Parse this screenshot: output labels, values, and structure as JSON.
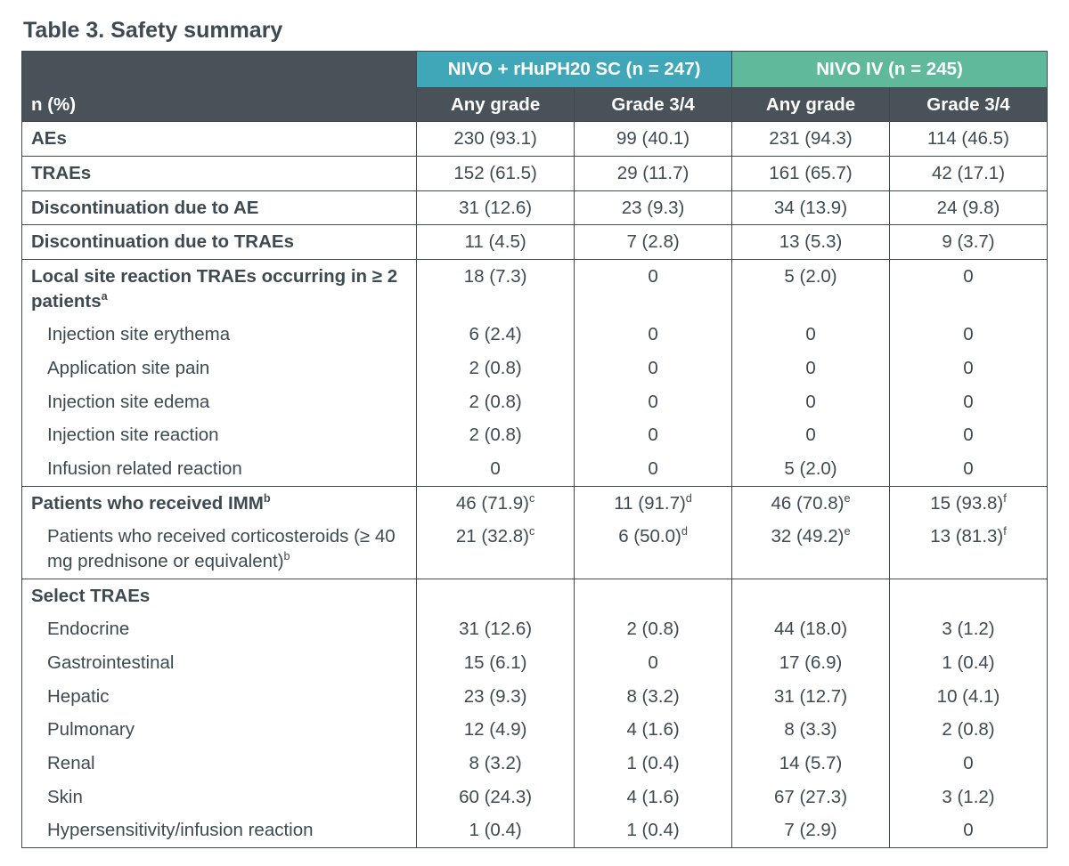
{
  "title": "Table 3. Safety summary",
  "corner_label": "n (%)",
  "colors": {
    "group1_bg": "#3fa7b8",
    "group2_bg": "#5fb99a",
    "header_bg": "#4a5259",
    "header_fg": "#ffffff",
    "border": "#3f4a52",
    "text": "#3d4a52"
  },
  "groups": [
    {
      "label": "NIVO + rHuPH20 SC (n = 247)",
      "bg": "#3fa7b8"
    },
    {
      "label": "NIVO IV (n = 245)",
      "bg": "#5fb99a"
    }
  ],
  "sub_headers": [
    "Any grade",
    "Grade 3/4",
    "Any grade",
    "Grade 3/4"
  ],
  "rows": [
    {
      "label": "AEs",
      "vals": [
        "230 (93.1)",
        "99 (40.1)",
        "231 (94.3)",
        "114 (46.5)"
      ]
    },
    {
      "label": "TRAEs",
      "vals": [
        "152 (61.5)",
        "29 (11.7)",
        "161 (65.7)",
        "42 (17.1)"
      ]
    },
    {
      "label": "Discontinuation due to AE",
      "vals": [
        "31 (12.6)",
        "23 (9.3)",
        "34 (13.9)",
        "24 (9.8)"
      ]
    },
    {
      "label": "Discontinuation due to TRAEs",
      "vals": [
        "11 (4.5)",
        "7 (2.8)",
        "13 (5.3)",
        "9 (3.7)"
      ]
    },
    {
      "label": "Local site reaction TRAEs occurring in ≥ 2 patients",
      "sup": "a",
      "vals": [
        "18 (7.3)",
        "0",
        "5 (2.0)",
        "0"
      ],
      "border": "no-bottom"
    },
    {
      "label": "Injection site erythema",
      "indent": true,
      "vals": [
        "6 (2.4)",
        "0",
        "0",
        "0"
      ],
      "border": "no-tb"
    },
    {
      "label": "Application site pain",
      "indent": true,
      "vals": [
        "2 (0.8)",
        "0",
        "0",
        "0"
      ],
      "border": "no-tb"
    },
    {
      "label": "Injection site edema",
      "indent": true,
      "vals": [
        "2 (0.8)",
        "0",
        "0",
        "0"
      ],
      "border": "no-tb"
    },
    {
      "label": "Injection site reaction",
      "indent": true,
      "vals": [
        "2 (0.8)",
        "0",
        "0",
        "0"
      ],
      "border": "no-tb"
    },
    {
      "label": "Infusion related reaction",
      "indent": true,
      "vals": [
        "0",
        "0",
        "5 (2.0)",
        "0"
      ],
      "border": "no-top"
    },
    {
      "label": "Patients who received IMM",
      "sup": "b",
      "vals": [
        "46 (71.9)",
        "11 (91.7)",
        "46 (70.8)",
        "15 (93.8)"
      ],
      "val_sups": [
        "c",
        "d",
        "e",
        "f"
      ],
      "border": "no-bottom"
    },
    {
      "label": "Patients who received corticosteroids (≥ 40 mg prednisone or equivalent)",
      "sup": "b",
      "indent": true,
      "vals": [
        "21 (32.8)",
        "6 (50.0)",
        "32 (49.2)",
        "13 (81.3)"
      ],
      "val_sups": [
        "c",
        "d",
        "e",
        "f"
      ],
      "border": "no-top"
    },
    {
      "label": "Select TRAEs",
      "vals": [
        "",
        "",
        "",
        ""
      ],
      "border": "no-bottom"
    },
    {
      "label": "Endocrine",
      "indent": true,
      "vals": [
        "31 (12.6)",
        "2 (0.8)",
        "44 (18.0)",
        "3 (1.2)"
      ],
      "border": "no-tb"
    },
    {
      "label": "Gastrointestinal",
      "indent": true,
      "vals": [
        "15 (6.1)",
        "0",
        "17 (6.9)",
        "1 (0.4)"
      ],
      "border": "no-tb"
    },
    {
      "label": "Hepatic",
      "indent": true,
      "vals": [
        "23 (9.3)",
        "8 (3.2)",
        "31 (12.7)",
        "10 (4.1)"
      ],
      "border": "no-tb"
    },
    {
      "label": "Pulmonary",
      "indent": true,
      "vals": [
        "12 (4.9)",
        "4 (1.6)",
        "8 (3.3)",
        "2 (0.8)"
      ],
      "border": "no-tb"
    },
    {
      "label": "Renal",
      "indent": true,
      "vals": [
        "8 (3.2)",
        "1 (0.4)",
        "14 (5.7)",
        "0"
      ],
      "border": "no-tb"
    },
    {
      "label": "Skin",
      "indent": true,
      "vals": [
        "60 (24.3)",
        "4 (1.6)",
        "67 (27.3)",
        "3 (1.2)"
      ],
      "border": "no-tb"
    },
    {
      "label": "Hypersensitivity/infusion reaction",
      "indent": true,
      "vals": [
        "1 (0.4)",
        "1 (0.4)",
        "7 (2.9)",
        "0"
      ],
      "border": "no-top"
    }
  ]
}
